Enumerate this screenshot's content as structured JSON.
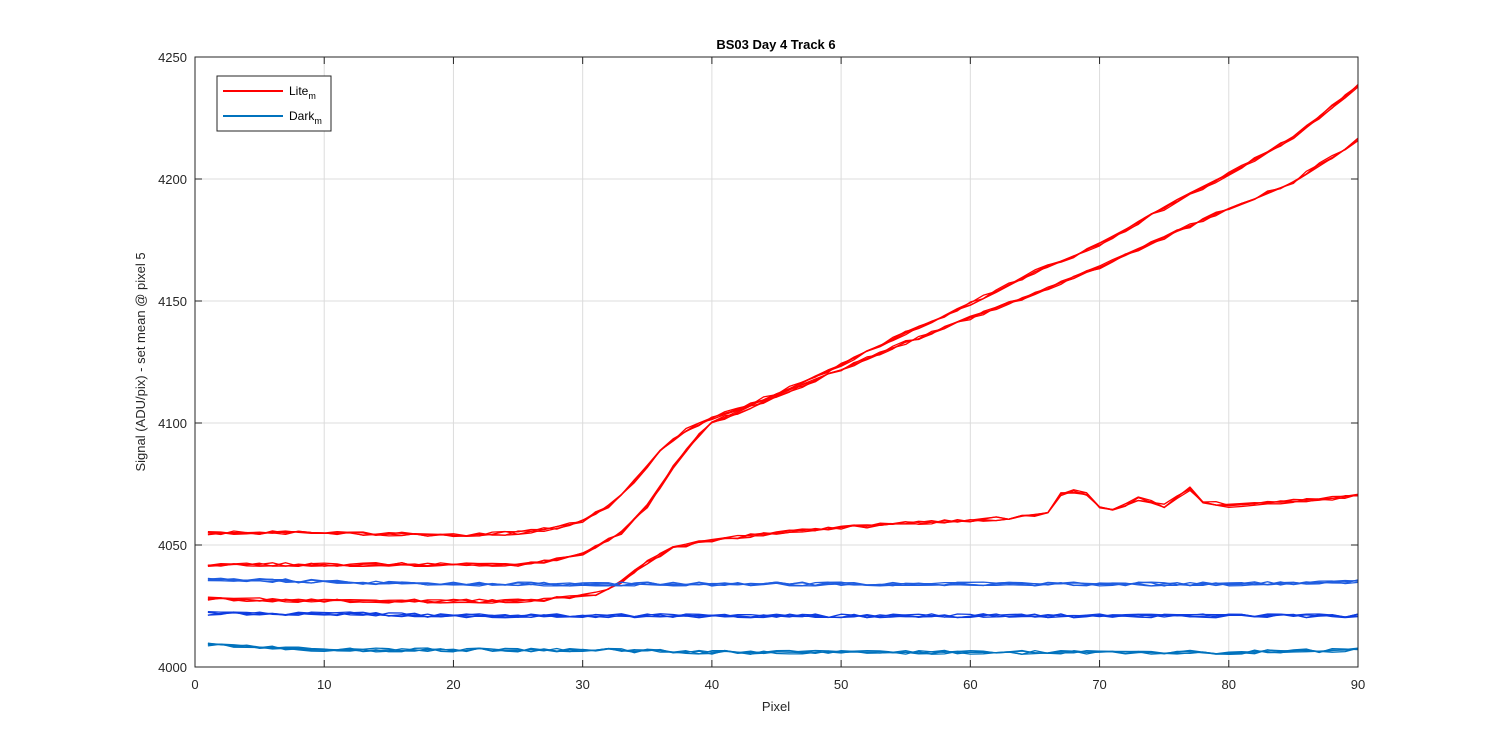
{
  "chart_data": {
    "type": "line",
    "title": "BS03 Day 4 Track 6",
    "xlabel": "Pixel",
    "ylabel": "Signal (ADU/pix) - set mean @ pixel 5",
    "xlim": [
      0,
      90
    ],
    "ylim": [
      4000,
      4250
    ],
    "xticks": [
      0,
      10,
      20,
      30,
      40,
      50,
      60,
      70,
      80,
      90
    ],
    "yticks": [
      4000,
      4050,
      4100,
      4150,
      4200,
      4250
    ],
    "grid": true,
    "legend": {
      "placement": "top-left",
      "entries": [
        {
          "base": "Lite",
          "sub": "m",
          "color": "#ff0000"
        },
        {
          "base": "Dark",
          "sub": "m",
          "color": "#0072bd"
        }
      ]
    },
    "series": [
      {
        "group": "Lite",
        "color": "#ff0000",
        "x": [
          1,
          10,
          20,
          25,
          28,
          30,
          32,
          34,
          36,
          38,
          40,
          45,
          50,
          55,
          60,
          65,
          70,
          75,
          80,
          85,
          90
        ],
        "y": [
          4055,
          4055,
          4054,
          4055,
          4057,
          4060,
          4066,
          4076,
          4089,
          4097,
          4102,
          4112,
          4124,
          4137,
          4149,
          4162,
          4173,
          4188,
          4202,
          4217,
          4238
        ]
      },
      {
        "group": "Lite",
        "color": "#ff0000",
        "x": [
          1,
          10,
          20,
          25,
          28,
          30,
          31,
          33,
          35,
          37,
          39,
          40,
          45,
          50,
          55,
          60,
          65,
          70,
          75,
          80,
          85,
          90
        ],
        "y": [
          4042,
          4042,
          4042,
          4042,
          4044,
          4046,
          4049,
          4055,
          4066,
          4082,
          4095,
          4100,
          4111,
          4122,
          4133,
          4143,
          4153,
          4164,
          4176,
          4188,
          4199,
          4216
        ]
      },
      {
        "group": "Lite",
        "color": "#ff0000",
        "x": [
          1,
          10,
          20,
          25,
          28,
          30,
          31,
          33,
          35,
          37,
          40,
          45,
          50,
          55,
          60,
          65,
          66,
          67,
          68,
          69,
          70,
          71,
          73,
          75,
          77,
          78,
          80,
          85,
          90
        ],
        "y": [
          4028,
          4027,
          4027,
          4027,
          4028,
          4029,
          4030,
          4035,
          4043,
          4049,
          4052,
          4055,
          4057,
          4059,
          4060,
          4062,
          4063,
          4071,
          4072,
          4071,
          4066,
          4064,
          4069,
          4066,
          4073,
          4068,
          4066,
          4068,
          4070
        ]
      },
      {
        "group": "Dark",
        "color": "#1f5de0",
        "x": [
          1,
          10,
          20,
          30,
          40,
          50,
          60,
          70,
          80,
          90
        ],
        "y": [
          4036,
          4035,
          4034,
          4034,
          4034,
          4034,
          4034,
          4034,
          4034,
          4035
        ]
      },
      {
        "group": "Dark",
        "color": "#0e3ce0",
        "x": [
          1,
          10,
          20,
          30,
          40,
          50,
          60,
          70,
          80,
          90
        ],
        "y": [
          4022,
          4022,
          4021,
          4021,
          4021,
          4021,
          4021,
          4021,
          4021,
          4021
        ]
      },
      {
        "group": "Dark",
        "color": "#0072bd",
        "x": [
          1,
          10,
          20,
          30,
          40,
          50,
          60,
          70,
          80,
          90
        ],
        "y": [
          4009,
          4007,
          4007,
          4007,
          4006,
          4006,
          4006,
          4006,
          4006,
          4007
        ]
      }
    ]
  }
}
